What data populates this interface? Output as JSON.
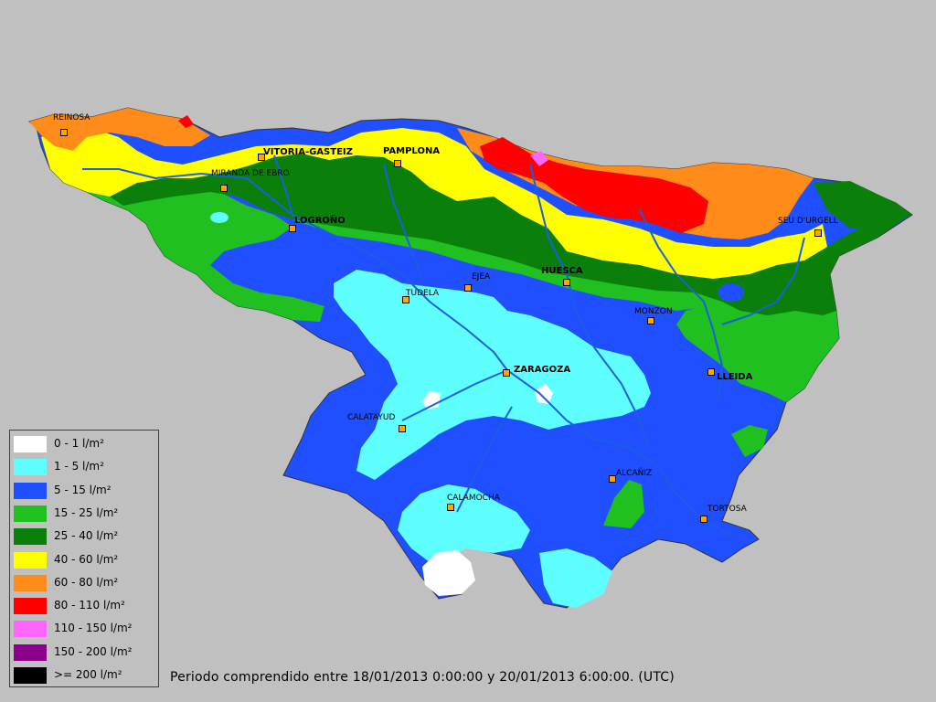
{
  "map": {
    "cities": [
      {
        "name": "REINOSA",
        "major": false
      },
      {
        "name": "VITORIA-GASTEIZ",
        "major": true
      },
      {
        "name": "PAMPLONA",
        "major": true
      },
      {
        "name": "MIRANDA DE EBRO",
        "major": false
      },
      {
        "name": "LOGROÑO",
        "major": true
      },
      {
        "name": "SEU D'URGELL",
        "major": false
      },
      {
        "name": "HUESCA",
        "major": true
      },
      {
        "name": "EJEA",
        "major": false
      },
      {
        "name": "TUDELA",
        "major": false
      },
      {
        "name": "MONZON",
        "major": false
      },
      {
        "name": "ZARAGOZA",
        "major": true
      },
      {
        "name": "LLEIDA",
        "major": true
      },
      {
        "name": "CALATAYUD",
        "major": false
      },
      {
        "name": "ALCAÑIZ",
        "major": false
      },
      {
        "name": "CALAMOCHA",
        "major": false
      },
      {
        "name": "TORTOSA",
        "major": false
      }
    ]
  },
  "legend": {
    "items": [
      {
        "label": "0 - 1 l/m²",
        "color": "#ffffff"
      },
      {
        "label": "1 - 5 l/m²",
        "color": "#5fffff"
      },
      {
        "label": "5 - 15 l/m²",
        "color": "#1f4fff"
      },
      {
        "label": "15 - 25 l/m²",
        "color": "#1fc01f"
      },
      {
        "label": "25 - 40 l/m²",
        "color": "#0a800a"
      },
      {
        "label": "40 - 60 l/m²",
        "color": "#ffff00"
      },
      {
        "label": "60 - 80 l/m²",
        "color": "#ff8c1a"
      },
      {
        "label": "80 - 110 l/m²",
        "color": "#ff0000"
      },
      {
        "label": "110 - 150 l/m²",
        "color": "#ff66ff"
      },
      {
        "label": "150 - 200 l/m²",
        "color": "#8b008b"
      },
      {
        "label": ">= 200 l/m²",
        "color": "#000000"
      }
    ]
  },
  "footer": {
    "period": "Periodo comprendido entre 18/01/2013 0:00:00 y 20/01/2013 6:00:00. (UTC)"
  },
  "colors": {
    "background": "#c0c0c0",
    "river": "#1a5fe0",
    "marker": "#ffa500"
  }
}
